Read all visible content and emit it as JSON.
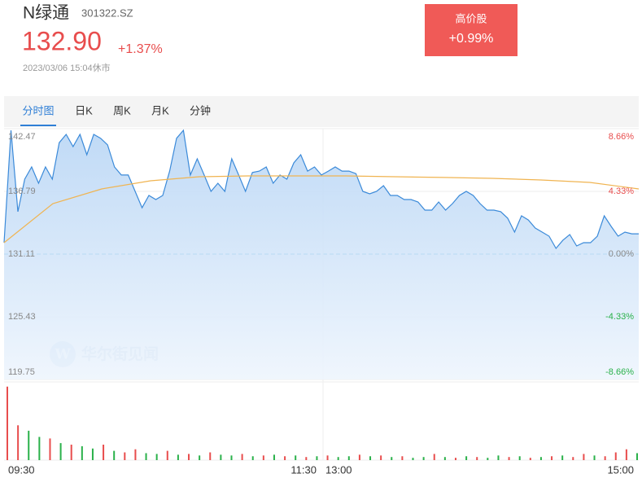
{
  "header": {
    "name": "N绿通",
    "code": "301322.SZ",
    "price": "132.90",
    "change": "+1.37%",
    "time": "2023/03/06 15:04休市"
  },
  "badge": {
    "title": "高价股",
    "value": "+0.99%"
  },
  "tabs": {
    "items": [
      "分时图",
      "日K",
      "周K",
      "月K",
      "分钟"
    ],
    "active": 0
  },
  "watermark": "华尔街见闻",
  "chart_data": {
    "type": "line",
    "series": [
      {
        "name": "price",
        "color": "#3b8ad9",
        "values": [
          132.14,
          142.32,
          134.95,
          137.9,
          139.0,
          137.53,
          139.0,
          137.9,
          141.2,
          141.95,
          140.85,
          141.95,
          140.11,
          141.95,
          141.6,
          141.0,
          139.0,
          138.27,
          138.27,
          136.79,
          135.31,
          136.42,
          136.05,
          136.42,
          138.63,
          141.6,
          142.32,
          138.27,
          139.74,
          138.27,
          136.79,
          137.53,
          136.79,
          139.74,
          138.27,
          136.79,
          138.5,
          138.63,
          139.0,
          137.53,
          138.27,
          137.9,
          139.37,
          140.11,
          138.63,
          139.0,
          138.27,
          138.63,
          139.0,
          138.63,
          138.63,
          138.4,
          136.79,
          136.57,
          136.79,
          137.31,
          136.42,
          136.42,
          136.05,
          136.05,
          135.83,
          135.09,
          135.09,
          135.83,
          135.09,
          135.68,
          136.42,
          136.79,
          136.42,
          135.68,
          135.09,
          135.09,
          134.95,
          134.36,
          133.1,
          134.58,
          134.2,
          133.47,
          133.1,
          132.73,
          131.63,
          132.36,
          132.88,
          131.85,
          132.14,
          132.14,
          132.73,
          134.58,
          133.62,
          132.73,
          133.1,
          132.95,
          132.95
        ]
      },
      {
        "name": "average",
        "color": "#f0b451",
        "values": [
          132.14,
          135.68,
          137.01,
          137.75,
          138.12,
          138.19,
          138.19,
          138.19,
          138.12,
          138.05,
          137.97,
          137.82,
          137.6,
          137.01
        ]
      }
    ],
    "ylim": [
      119.75,
      142.47
    ],
    "yticks": [
      142.47,
      136.79,
      131.11,
      125.43,
      119.75
    ],
    "y2lim": [
      -8.66,
      8.66
    ],
    "y2ticks": [
      {
        "value": 8.66,
        "label": "8.66%"
      },
      {
        "value": 4.33,
        "label": "4.33%"
      },
      {
        "value": 0,
        "label": "0.00%"
      },
      {
        "value": -4.33,
        "label": "-4.33%"
      },
      {
        "value": -8.66,
        "label": "-8.66%"
      }
    ],
    "x_labels": [
      "09:30",
      "11:30",
      "13:00",
      "15:00"
    ],
    "volume": {
      "ylim": [
        0,
        100
      ],
      "values": [
        95,
        45,
        38,
        30,
        28,
        22,
        20,
        18,
        15,
        20,
        12,
        10,
        14,
        9,
        8,
        12,
        7,
        8,
        6,
        10,
        7,
        6,
        8,
        5,
        6,
        7,
        5,
        6,
        4,
        5,
        6,
        4,
        5,
        7,
        5,
        6,
        4,
        5,
        3,
        4,
        8,
        4,
        3,
        5,
        4,
        3,
        6,
        4,
        5,
        3,
        4,
        5,
        6,
        4,
        8,
        6,
        5,
        10,
        14,
        9
      ],
      "colors": [
        "#e84d4d",
        "#e84d4d",
        "#2ab14a",
        "#2ab14a",
        "#e84d4d",
        "#2ab14a",
        "#e84d4d",
        "#2ab14a",
        "#2ab14a",
        "#e84d4d",
        "#2ab14a",
        "#e84d4d",
        "#e84d4d",
        "#2ab14a",
        "#2ab14a",
        "#e84d4d",
        "#2ab14a",
        "#e84d4d",
        "#2ab14a",
        "#e84d4d",
        "#2ab14a",
        "#2ab14a",
        "#e84d4d",
        "#2ab14a",
        "#e84d4d",
        "#2ab14a",
        "#e84d4d",
        "#2ab14a",
        "#e84d4d",
        "#2ab14a",
        "#e84d4d",
        "#2ab14a",
        "#2ab14a",
        "#e84d4d",
        "#2ab14a",
        "#e84d4d",
        "#2ab14a",
        "#e84d4d",
        "#2ab14a",
        "#2ab14a",
        "#e84d4d",
        "#2ab14a",
        "#e84d4d",
        "#2ab14a",
        "#e84d4d",
        "#2ab14a",
        "#2ab14a",
        "#e84d4d",
        "#2ab14a",
        "#e84d4d",
        "#2ab14a",
        "#e84d4d",
        "#2ab14a",
        "#e84d4d",
        "#e84d4d",
        "#2ab14a",
        "#e84d4d",
        "#e84d4d",
        "#e84d4d",
        "#2ab14a"
      ]
    }
  }
}
